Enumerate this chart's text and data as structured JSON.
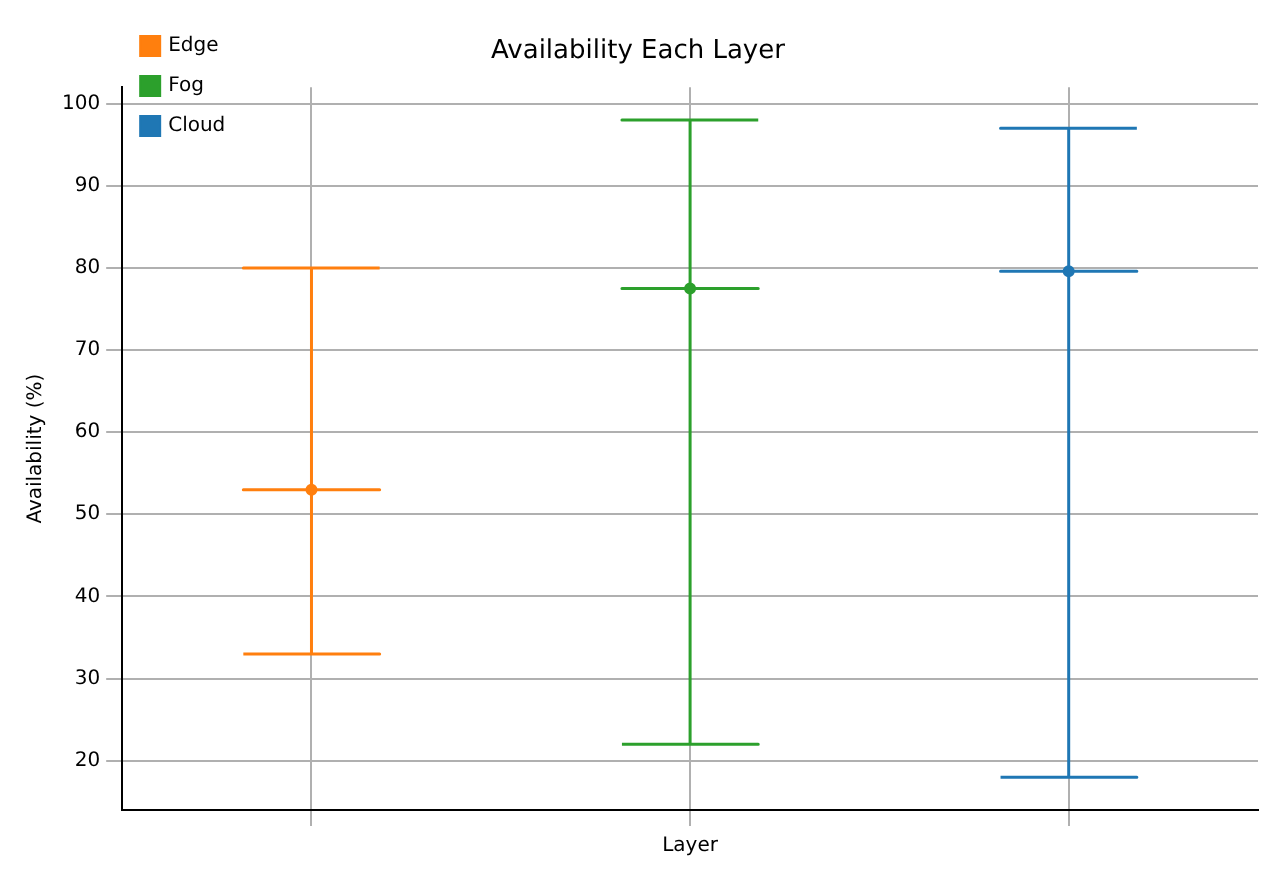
{
  "chart_data": {
    "type": "scatter",
    "title": "Availability Each Layer",
    "xlabel": "Layer",
    "ylabel": "Availability (%)",
    "categories": [
      null,
      null,
      null
    ],
    "series": [
      {
        "name": "Edge",
        "color": "#ff7f0e",
        "values": [
          53,
          null,
          null
        ],
        "errors": [
          [
            33,
            80
          ],
          null,
          null
        ]
      },
      {
        "name": "Fog",
        "color": "#2ca02c",
        "values": [
          null,
          77.5,
          null
        ],
        "errors": [
          null,
          [
            22,
            98
          ],
          null
        ]
      },
      {
        "name": "Cloud",
        "color": "#1f77b4",
        "values": [
          null,
          null,
          79.6
        ],
        "errors": [
          null,
          null,
          [
            18,
            97
          ]
        ]
      }
    ],
    "ylim": [
      14,
      102
    ],
    "yticks": [
      20,
      30,
      40,
      50,
      60,
      70,
      80,
      90,
      100
    ],
    "grid": true,
    "marker": "circle",
    "legend": "top left",
    "tick_labels": "y"
  }
}
